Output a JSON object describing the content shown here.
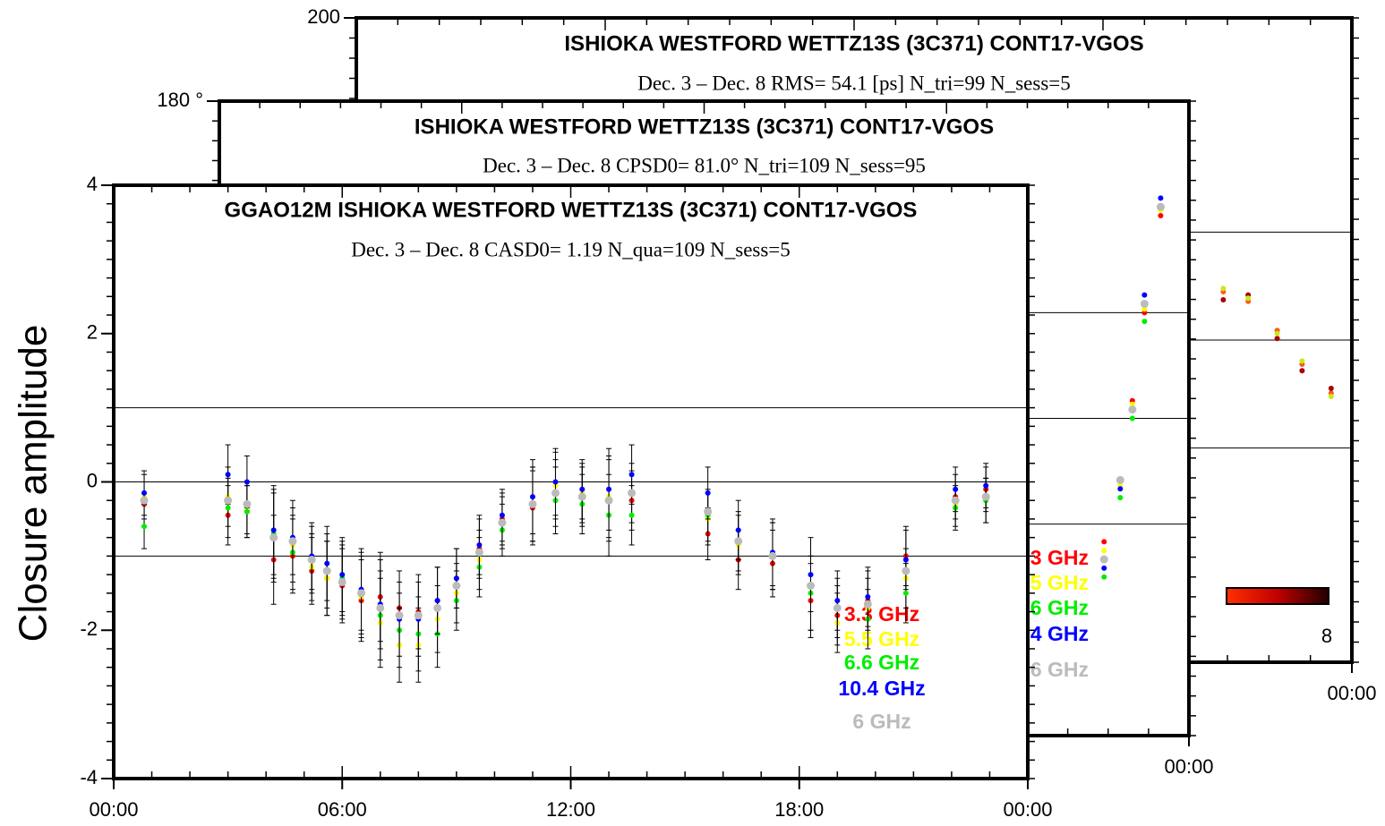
{
  "chart_data": [
    {
      "type": "scatter",
      "title": "ISHIOKA  WESTFORD WETTZ13S (3C371) CONT17-VGOS",
      "subtitle": "Dec.  3 – Dec.  8   RMS= 54.1 [ps]    N_tri=99    N_sess=5",
      "xlim": [
        0,
        24
      ],
      "ylim": [
        -200,
        200
      ],
      "xticks": [
        {
          "value": 24,
          "label": "00:00"
        }
      ],
      "yticks": [
        200
      ],
      "hlines": [
        67,
        0,
        -67
      ],
      "colorbar_ticks": [
        8
      ],
      "x": [
        20.9,
        21.5,
        22.2,
        22.8,
        23.5
      ],
      "series": [
        {
          "color": "#ff5a10",
          "values": [
            30,
            24,
            6,
            -15,
            -33
          ]
        },
        {
          "color": "#a80000",
          "values": [
            25,
            28,
            1,
            -19,
            -30
          ]
        },
        {
          "color": "#c8e820",
          "values": [
            32,
            26,
            4,
            -13,
            -35
          ]
        }
      ]
    },
    {
      "type": "scatter",
      "title": "ISHIOKA  WESTFORD WETTZ13S (3C371) CONT17-VGOS",
      "subtitle": "Dec.  3 – Dec.  8   CPSD0= 81.0°    N_tri=109    N_sess=95",
      "xlim": [
        0,
        24
      ],
      "ylim": [
        -180,
        180
      ],
      "xticks": [
        {
          "value": 24,
          "label": "00:00"
        }
      ],
      "yticks": [
        {
          "value": 180,
          "label": "180 °"
        }
      ],
      "hlines": [
        60,
        0,
        -60
      ],
      "x": [
        21.9,
        22.3,
        22.6,
        22.9,
        23.3
      ],
      "series": [
        {
          "name": "3.3 GHz",
          "color": "#ff0000",
          "values": [
            -70,
            -35,
            10,
            60,
            115
          ]
        },
        {
          "name": "5.5 GHz",
          "color": "#ffff00",
          "values": [
            -75,
            -38,
            8,
            62,
            118
          ]
        },
        {
          "name": "6.6 GHz",
          "color": "#00ee00",
          "values": [
            -90,
            -45,
            0,
            55,
            120
          ]
        },
        {
          "name": "10.4 GHz",
          "color": "#0000ff",
          "values": [
            -85,
            -40,
            5,
            70,
            125
          ]
        },
        {
          "name": "6 GHz",
          "color": "#bbbbbb",
          "values": [
            -80,
            -35,
            5,
            65,
            120
          ]
        }
      ]
    },
    {
      "type": "scatter",
      "title": "GGAO12M ISHIOKA WESTFORD WETTZ13S  (3C371) CONT17-VGOS",
      "subtitle": "Dec.  3 – Dec.  8   CASD0= 1.19    N_qua=109    N_sess=5",
      "y_label": "Closure amplitude",
      "xlim": [
        0,
        24
      ],
      "ylim": [
        -4,
        4
      ],
      "xticks": [
        {
          "value": 0,
          "label": "00:00"
        },
        {
          "value": 6,
          "label": "06:00"
        },
        {
          "value": 12,
          "label": "12:00"
        },
        {
          "value": 18,
          "label": "18:00"
        },
        {
          "value": 24,
          "label": "00:00"
        }
      ],
      "yticks": [
        -4,
        -2,
        0,
        2,
        4
      ],
      "hlines": [
        1,
        0,
        -1
      ],
      "x": [
        0.8,
        3.0,
        3.5,
        4.2,
        4.7,
        5.2,
        5.6,
        6.0,
        6.5,
        7.0,
        7.5,
        8.0,
        8.5,
        9.0,
        9.6,
        10.2,
        11.0,
        11.6,
        12.3,
        13.0,
        13.6,
        15.6,
        16.4,
        17.3,
        18.3,
        19.0,
        19.8,
        20.8,
        22.1,
        22.9
      ],
      "series": [
        {
          "name": "3.3 GHz",
          "color": "#ff0000",
          "values": [
            -0.3,
            -0.45,
            -0.4,
            -1.05,
            -1.0,
            -1.2,
            -1.3,
            -1.4,
            -1.6,
            -1.55,
            -1.7,
            -1.75,
            -1.6,
            -1.3,
            -0.9,
            -0.5,
            -0.35,
            -0.15,
            -0.2,
            -0.25,
            -0.25,
            -0.7,
            -1.05,
            -1.1,
            -1.6,
            -1.8,
            -1.6,
            -1.0,
            -0.2,
            -0.1
          ],
          "errors": [
            0.3,
            0.4,
            0.35,
            0.6,
            0.5,
            0.45,
            0.5,
            0.5,
            0.55,
            0.6,
            0.5,
            0.5,
            0.45,
            0.4,
            0.4,
            0.35,
            0.5,
            0.45,
            0.4,
            0.55,
            0.4,
            0.35,
            0.4,
            0.45,
            0.5,
            0.4,
            0.4,
            0.4,
            0.3,
            0.3
          ]
        },
        {
          "name": "5.5 GHz",
          "color": "#ffff00",
          "values": [
            -0.2,
            -0.2,
            -0.35,
            -0.75,
            -0.85,
            -1.15,
            -1.3,
            -1.35,
            -1.55,
            -1.9,
            -2.2,
            -2.2,
            -1.85,
            -1.5,
            -1.05,
            -0.55,
            -0.3,
            -0.05,
            -0.15,
            -0.2,
            -0.15,
            -0.5,
            -0.85,
            -1.0,
            -1.5,
            -1.9,
            -1.7,
            -1.3,
            -0.3,
            -0.25
          ],
          "errors": [
            0.3,
            0.4,
            0.35,
            0.6,
            0.5,
            0.45,
            0.5,
            0.5,
            0.55,
            0.6,
            0.5,
            0.5,
            0.45,
            0.4,
            0.4,
            0.35,
            0.5,
            0.45,
            0.4,
            0.55,
            0.4,
            0.35,
            0.4,
            0.45,
            0.5,
            0.4,
            0.4,
            0.4,
            0.3,
            0.3
          ]
        },
        {
          "name": "6.6 GHz",
          "color": "#00ee00",
          "values": [
            -0.6,
            -0.35,
            -0.4,
            -0.7,
            -0.95,
            -1.05,
            -1.2,
            -1.3,
            -1.5,
            -1.8,
            -2.0,
            -2.05,
            -2.05,
            -1.6,
            -1.15,
            -0.65,
            -0.3,
            -0.25,
            -0.3,
            -0.45,
            -0.45,
            -0.45,
            -0.8,
            -1.0,
            -1.5,
            -1.7,
            -1.85,
            -1.5,
            -0.35,
            -0.25
          ],
          "errors": [
            0.3,
            0.4,
            0.35,
            0.6,
            0.5,
            0.45,
            0.5,
            0.5,
            0.55,
            0.6,
            0.5,
            0.5,
            0.45,
            0.4,
            0.4,
            0.35,
            0.5,
            0.45,
            0.4,
            0.55,
            0.4,
            0.35,
            0.4,
            0.45,
            0.5,
            0.4,
            0.4,
            0.4,
            0.3,
            0.3
          ]
        },
        {
          "name": "10.4 GHz",
          "color": "#0000ff",
          "values": [
            -0.15,
            0.1,
            0.0,
            -0.65,
            -0.75,
            -1.0,
            -1.1,
            -1.25,
            -1.45,
            -1.65,
            -1.85,
            -1.85,
            -1.6,
            -1.3,
            -0.85,
            -0.45,
            -0.2,
            0.0,
            -0.1,
            -0.1,
            0.1,
            -0.15,
            -0.65,
            -0.95,
            -1.25,
            -1.6,
            -1.55,
            -1.05,
            -0.1,
            -0.05
          ],
          "errors": [
            0.3,
            0.4,
            0.35,
            0.6,
            0.5,
            0.45,
            0.5,
            0.5,
            0.55,
            0.6,
            0.5,
            0.5,
            0.45,
            0.4,
            0.4,
            0.35,
            0.5,
            0.45,
            0.4,
            0.55,
            0.4,
            0.35,
            0.4,
            0.45,
            0.5,
            0.4,
            0.4,
            0.4,
            0.3,
            0.3
          ]
        },
        {
          "name": "6 GHz",
          "color": "#bbbbbb",
          "values": [
            -0.25,
            -0.25,
            -0.3,
            -0.75,
            -0.8,
            -1.05,
            -1.2,
            -1.35,
            -1.5,
            -1.7,
            -1.8,
            -1.8,
            -1.7,
            -1.4,
            -0.95,
            -0.55,
            -0.3,
            -0.15,
            -0.2,
            -0.25,
            -0.15,
            -0.4,
            -0.8,
            -1.0,
            -1.4,
            -1.7,
            -1.65,
            -1.2,
            -0.25,
            -0.2
          ]
        }
      ]
    }
  ]
}
